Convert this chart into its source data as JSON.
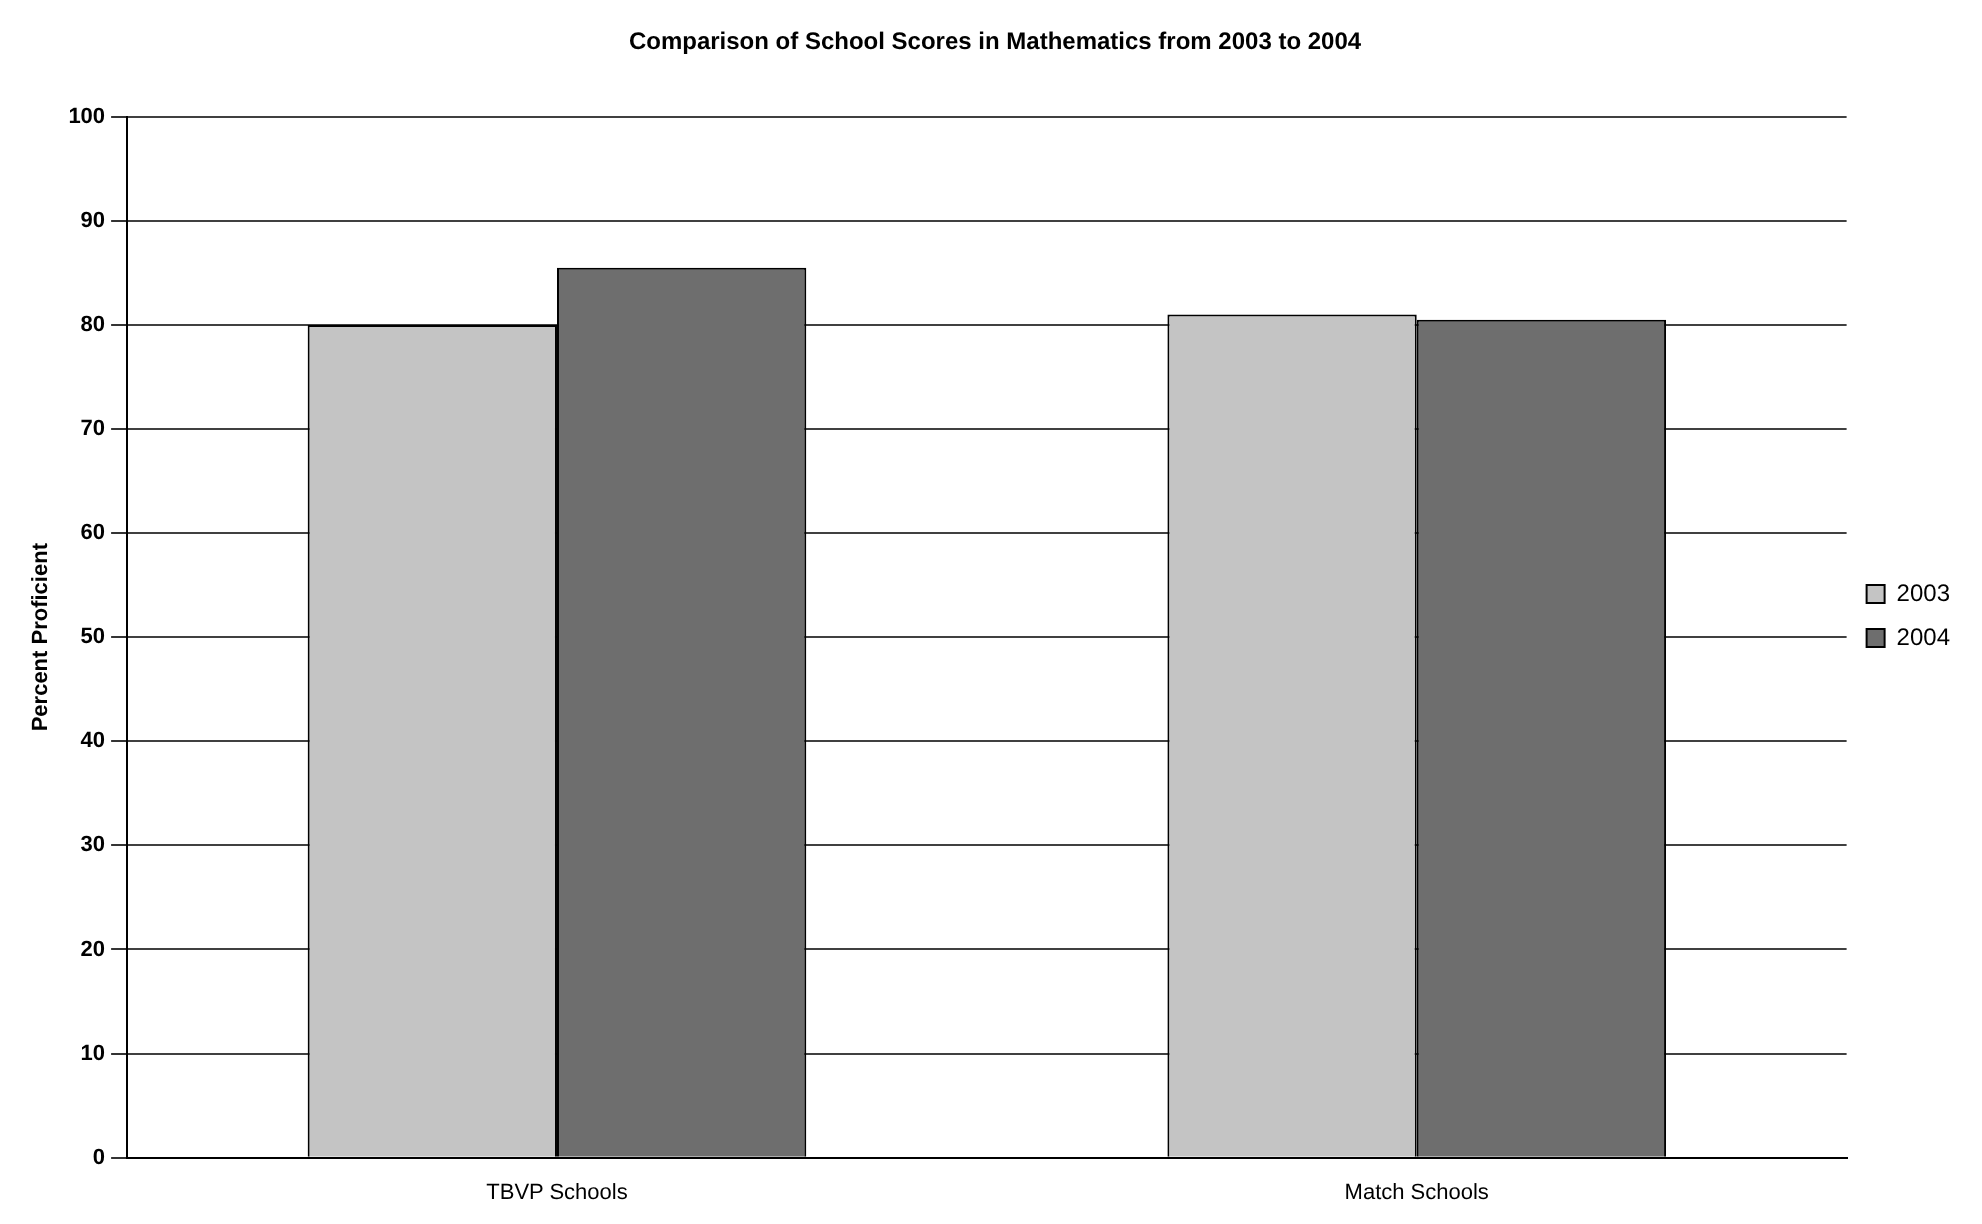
{
  "chart_data": {
    "type": "bar",
    "title": "Comparison of School Scores in Mathematics from 2003 to 2004",
    "ylabel": "Percent Proficient",
    "categories": [
      "TBVP Schools",
      "Match Schools"
    ],
    "series": [
      {
        "name": "2003",
        "color": "#c4c4c4",
        "values": [
          80,
          81
        ]
      },
      {
        "name": "2004",
        "color": "#6e6e6e",
        "values": [
          85.5,
          80.5
        ]
      }
    ],
    "ylim": [
      0,
      100
    ],
    "yticks": [
      0,
      10,
      20,
      30,
      40,
      50,
      60,
      70,
      80,
      90,
      100
    ],
    "grid": "y",
    "legend": "right"
  }
}
